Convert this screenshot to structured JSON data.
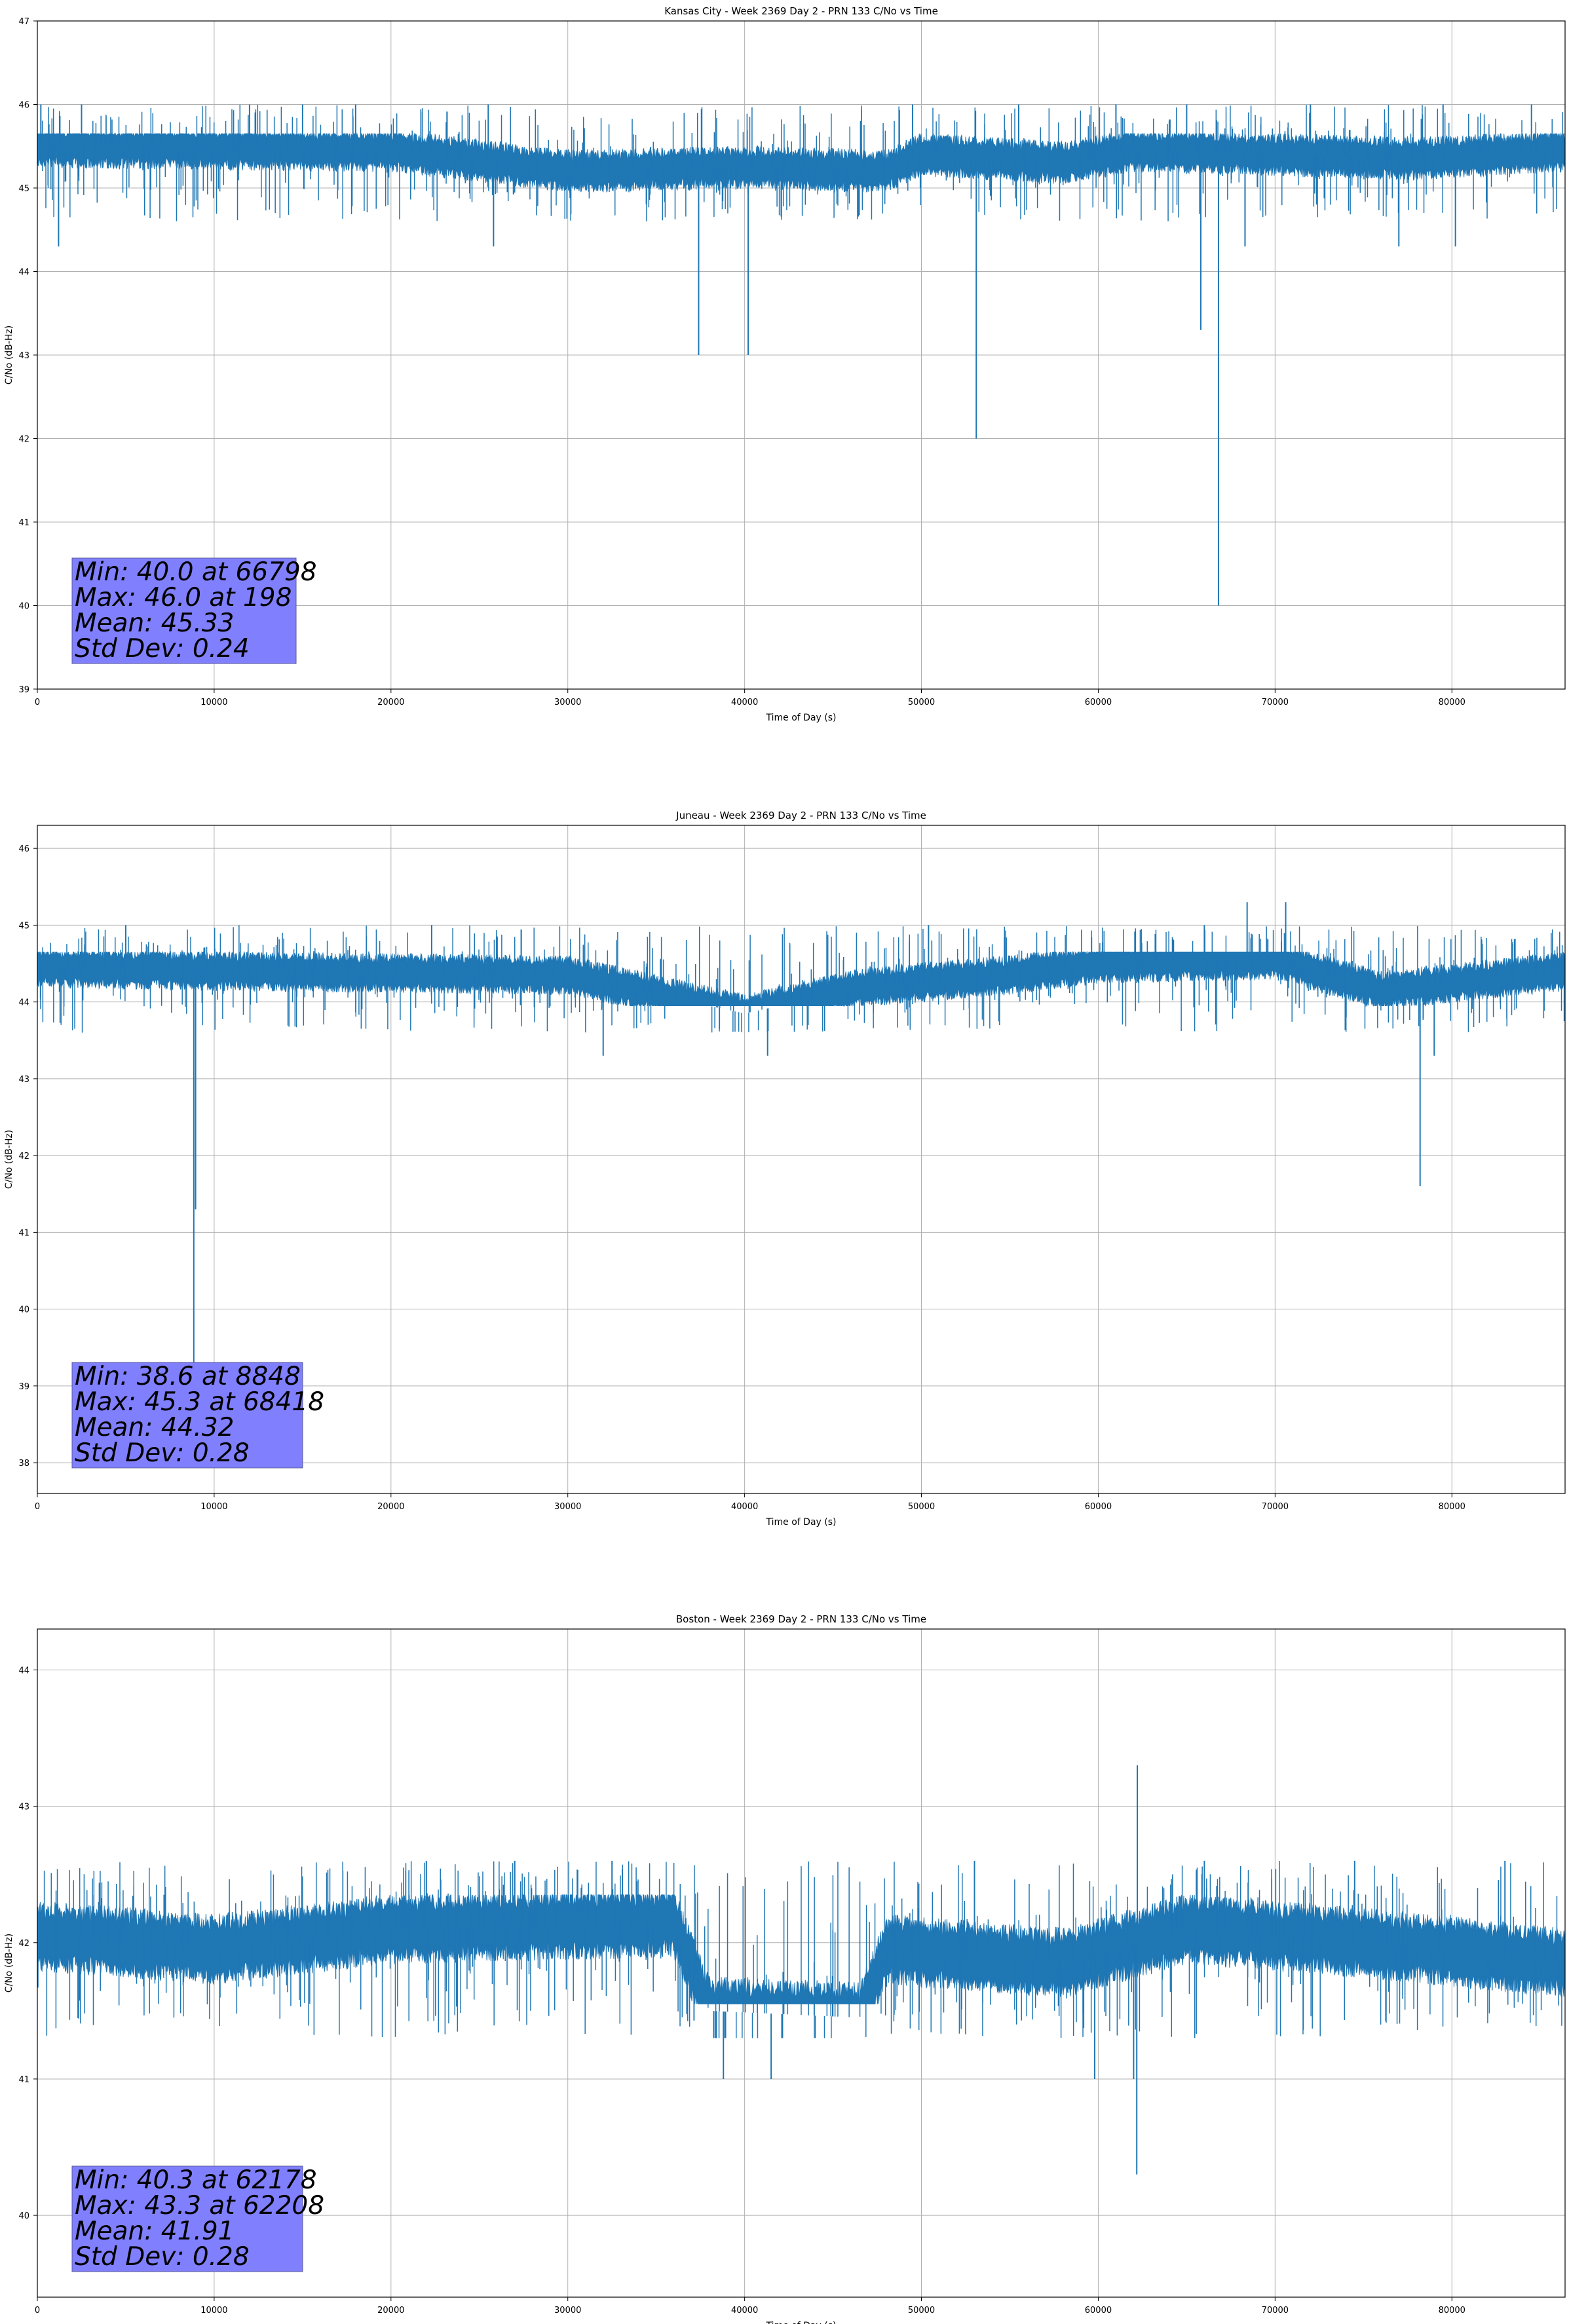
{
  "chart_data": [
    {
      "type": "line",
      "title": "Kansas City - Week 2369 Day 2 - PRN 133 C/No vs Time",
      "xlabel": "Time of Day (s)",
      "ylabel": "C/No (dB-Hz)",
      "xlim": [
        0,
        86400
      ],
      "ylim": [
        39,
        47
      ],
      "xticks": [
        0,
        10000,
        20000,
        30000,
        40000,
        50000,
        60000,
        70000,
        80000
      ],
      "yticks": [
        39,
        40,
        41,
        42,
        43,
        44,
        45,
        46,
        47
      ],
      "grid": true,
      "series_color": "#1f77b4",
      "stats_box_color": "#8080ff",
      "stats_lines": [
        "Min: 40.0 at 66798",
        "Max: 46.0 at 198",
        "Mean: 45.33",
        "Std Dev: 0.24"
      ],
      "trend": {
        "x": [
          0,
          20000,
          30000,
          40000,
          48000,
          50000,
          58000,
          62000,
          70000,
          78000,
          86400
        ],
        "y": [
          45.5,
          45.45,
          45.2,
          45.25,
          45.2,
          45.4,
          45.3,
          45.45,
          45.4,
          45.35,
          45.45
        ]
      },
      "band_lo": 45.0,
      "band_hi": 45.6,
      "dips": [
        [
          37400,
          43.0
        ],
        [
          40200,
          43.0
        ],
        [
          53100,
          42.0
        ],
        [
          65800,
          43.3
        ],
        [
          66798,
          40.0
        ],
        [
          1200,
          44.3
        ],
        [
          25800,
          44.3
        ],
        [
          68300,
          44.3
        ],
        [
          77000,
          44.3
        ],
        [
          80200,
          44.3
        ]
      ],
      "spikes": [
        [
          198,
          46.0
        ],
        [
          2500,
          46.0
        ],
        [
          12000,
          46.0
        ],
        [
          15000,
          46.0
        ],
        [
          18000,
          46.0
        ],
        [
          25500,
          46.0
        ],
        [
          49500,
          46.0
        ],
        [
          55500,
          46.0
        ],
        [
          61000,
          46.0
        ],
        [
          65000,
          46.0
        ],
        [
          72000,
          46.0
        ],
        [
          79500,
          46.0
        ],
        [
          84500,
          46.0
        ]
      ],
      "noise_lo": 44.6,
      "noise_hi": 46.0
    },
    {
      "type": "line",
      "title": "Juneau - Week 2369 Day 2 - PRN 133 C/No vs Time",
      "xlabel": "Time of Day (s)",
      "ylabel": "C/No (dB-Hz)",
      "xlim": [
        0,
        86400
      ],
      "ylim": [
        37.6,
        46.3
      ],
      "xticks": [
        0,
        10000,
        20000,
        30000,
        40000,
        50000,
        60000,
        70000,
        80000
      ],
      "yticks": [
        38,
        39,
        40,
        41,
        42,
        43,
        44,
        45,
        46
      ],
      "grid": true,
      "series_color": "#1f77b4",
      "stats_box_color": "#8080ff",
      "stats_lines": [
        "Min: 38.6 at 8848",
        "Max: 45.3 at 68418",
        "Mean: 44.32",
        "Std Dev: 0.28"
      ],
      "trend": {
        "x": [
          0,
          10000,
          30000,
          35000,
          40000,
          47000,
          55000,
          60000,
          70000,
          76000,
          86400
        ],
        "y": [
          44.45,
          44.4,
          44.35,
          44.1,
          43.85,
          44.2,
          44.35,
          44.5,
          44.55,
          44.15,
          44.4
        ]
      },
      "band_lo": 44.0,
      "band_hi": 44.6,
      "dips": [
        [
          8848,
          38.6
        ],
        [
          8950,
          41.3
        ],
        [
          78200,
          41.6
        ],
        [
          32000,
          43.3
        ],
        [
          41300,
          43.3
        ],
        [
          79000,
          43.3
        ]
      ],
      "spikes": [
        [
          68418,
          45.3
        ],
        [
          70600,
          45.3
        ],
        [
          22300,
          45.0
        ],
        [
          50400,
          45.0
        ],
        [
          5000,
          45.0
        ],
        [
          66000,
          45.0
        ]
      ],
      "noise_lo": 43.6,
      "noise_hi": 45.0
    },
    {
      "type": "line",
      "title": "Boston - Week 2369 Day 2 - PRN 133 C/No vs Time",
      "xlabel": "Time of Day (s)",
      "ylabel": "C/No (dB-Hz)",
      "xlim": [
        0,
        86400
      ],
      "ylim": [
        39.4,
        44.3
      ],
      "xticks": [
        0,
        10000,
        20000,
        30000,
        40000,
        50000,
        60000,
        70000,
        80000
      ],
      "yticks": [
        40,
        41,
        42,
        43,
        44
      ],
      "grid": true,
      "series_color": "#1f77b4",
      "stats_box_color": "#8080ff",
      "stats_lines": [
        "Min: 40.3 at 62178",
        "Max: 43.3 at 62208",
        "Mean: 41.91",
        "Std Dev: 0.28"
      ],
      "trend": {
        "x": [
          0,
          10000,
          20000,
          36000,
          38000,
          46500,
          48000,
          58000,
          65000,
          75000,
          86400
        ],
        "y": [
          42.05,
          41.95,
          42.1,
          42.15,
          41.5,
          41.45,
          41.95,
          41.85,
          42.1,
          42.0,
          41.85
        ]
      },
      "band_lo": 41.6,
      "band_hi": 42.3,
      "dips": [
        [
          62178,
          40.3
        ],
        [
          59800,
          41.0
        ],
        [
          38800,
          41.0
        ],
        [
          41500,
          41.0
        ],
        [
          62000,
          41.0
        ]
      ],
      "spikes": [
        [
          62208,
          43.3
        ],
        [
          22000,
          42.6
        ],
        [
          27000,
          42.6
        ],
        [
          32500,
          42.6
        ],
        [
          53000,
          42.6
        ],
        [
          66000,
          42.6
        ],
        [
          74500,
          42.6
        ],
        [
          83000,
          42.6
        ]
      ],
      "noise_lo": 41.3,
      "noise_hi": 42.6
    }
  ]
}
